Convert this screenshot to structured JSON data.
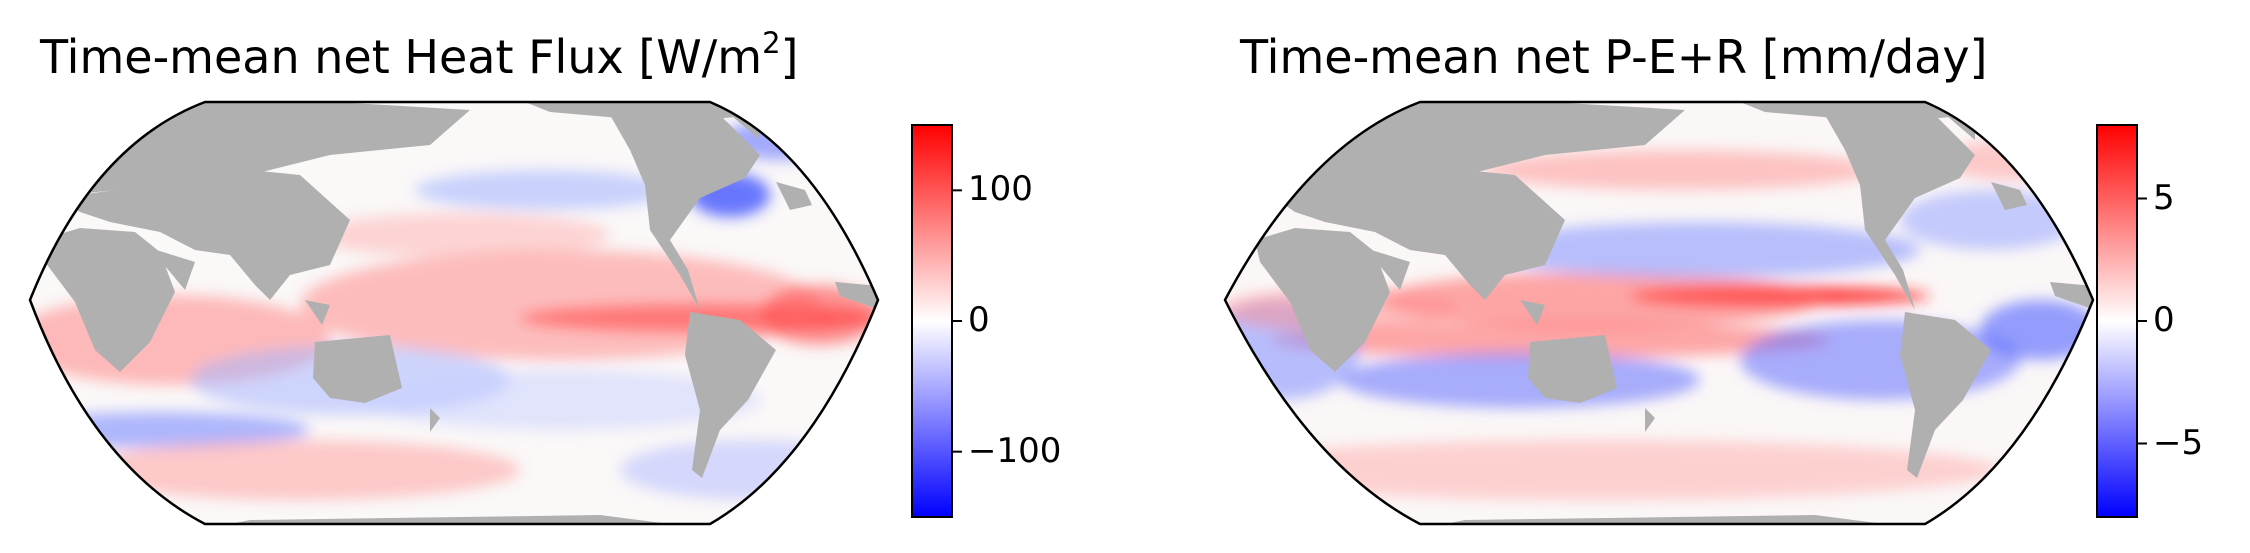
{
  "colors": {
    "land": "#b0b0b0",
    "negative": "#0000ff",
    "neutral": "#ffffff",
    "positive": "#ff0000",
    "border": "#000000"
  },
  "left_map": {
    "title_main": "Time-mean net Heat Flux [W/m",
    "title_sup": "2",
    "title_end": "]",
    "colorbar": {
      "range": [
        -150,
        150
      ],
      "ticks": [
        {
          "value": 100,
          "label": "100"
        },
        {
          "value": 0,
          "label": "0"
        },
        {
          "value": -100,
          "label": "−100"
        }
      ]
    }
  },
  "right_map": {
    "title": "Time-mean net P-E+R [mm/day]",
    "colorbar": {
      "range": [
        -8,
        8
      ],
      "ticks": [
        {
          "value": 5,
          "label": "5"
        },
        {
          "value": 0,
          "label": "0"
        },
        {
          "value": -5,
          "label": "−5"
        }
      ]
    }
  }
}
